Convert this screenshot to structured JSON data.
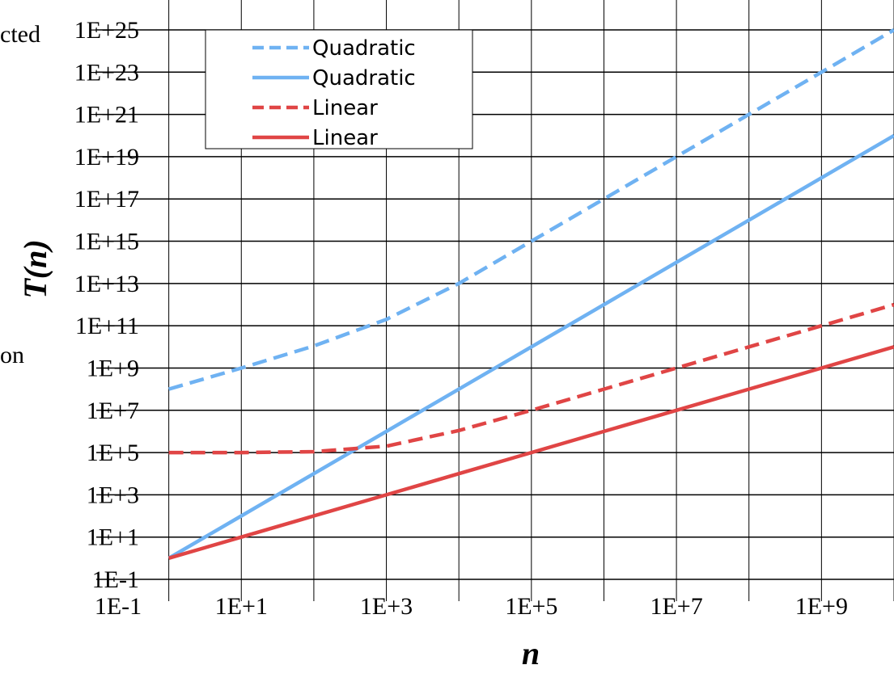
{
  "chart_data": {
    "type": "line",
    "xscale": "log",
    "yscale": "log",
    "xlabel": "n",
    "ylabel": "T(n)",
    "xlim": [
      0.1,
      10000000000
    ],
    "ylim": [
      0.1,
      1e+25
    ],
    "xticks": [
      0.1,
      10,
      1000,
      100000,
      10000000,
      1000000000
    ],
    "xtick_labels": [
      "1E-1",
      "1E+1",
      "1E+3",
      "1E+5",
      "1E+7",
      "1E+9"
    ],
    "yticks": [
      0.1,
      10,
      1000,
      100000,
      10000000,
      1000000000,
      100000000000,
      10000000000000.0,
      1000000000000000.0,
      1e+17,
      1e+19,
      1e+21,
      1e+23,
      1e+25
    ],
    "ytick_labels": [
      "1E-1",
      "1E+1",
      "1E+3",
      "1E+5",
      "1E+7",
      "1E+9",
      "1E+11",
      "1E+13",
      "1E+15",
      "1E+17",
      "1E+19",
      "1E+21",
      "1E+23",
      "1E+25"
    ],
    "grid": true,
    "legend_position": "top-left",
    "series": [
      {
        "name": "Quadratic",
        "style": "dashed",
        "color": "#6fb2f2",
        "x": [
          1,
          10,
          100,
          1000,
          10000,
          100000,
          1000000,
          10000000,
          100000000,
          1000000000,
          10000000000
        ],
        "y": [
          100000000,
          1000000000,
          11000000000,
          200000000000,
          10000000000000,
          1000000000000000,
          100000000000000000,
          10000000000000000000,
          1e+21,
          1e+23,
          1e+25
        ]
      },
      {
        "name": "Quadratic",
        "style": "solid",
        "color": "#6fb2f2",
        "x": [
          1,
          10,
          100,
          1000,
          10000,
          100000,
          1000000,
          10000000,
          100000000,
          1000000000,
          10000000000
        ],
        "y": [
          1,
          100,
          10000,
          1000000,
          100000000,
          10000000000,
          1000000000000,
          100000000000000,
          10000000000000000,
          1000000000000000000,
          100000000000000000000
        ]
      },
      {
        "name": "Linear",
        "style": "dashed",
        "color": "#e04545",
        "x": [
          1,
          10,
          100,
          1000,
          10000,
          100000,
          1000000,
          10000000,
          100000000,
          1000000000,
          10000000000
        ],
        "y": [
          100000,
          100000,
          110000,
          200000,
          1100000,
          10000000,
          100000000,
          1000000000,
          10000000000,
          100000000000,
          1000000000000
        ]
      },
      {
        "name": "Linear",
        "style": "solid",
        "color": "#e04545",
        "x": [
          1,
          10,
          100,
          1000,
          10000,
          100000,
          1000000,
          10000000,
          100000000,
          1000000000,
          10000000000
        ],
        "y": [
          1,
          10,
          100,
          1000,
          10000,
          100000,
          1000000,
          10000000,
          100000000,
          1000000000,
          10000000000
        ]
      }
    ]
  },
  "fragments": {
    "top_left": "cted",
    "mid_left": "on"
  }
}
